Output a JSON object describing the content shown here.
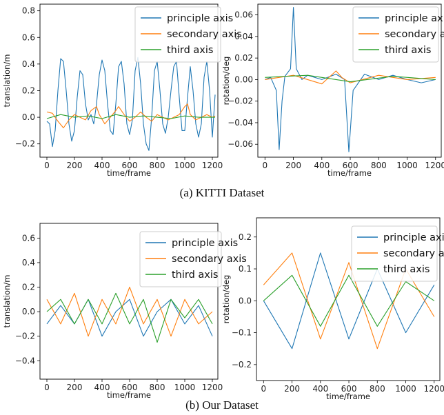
{
  "colors": {
    "principle": "#1f77b4",
    "secondary": "#ff7f0e",
    "third": "#2ca02c"
  },
  "legend_labels": [
    "principle axis",
    "secondary axis",
    "third axis"
  ],
  "captions": {
    "a": "(a)  KITTI Dataset",
    "b": "(b)  Our Dataset"
  },
  "chart_data": [
    {
      "id": "kitti-translation",
      "type": "line",
      "xlabel": "time/frame",
      "ylabel": "translation/m",
      "xlim": [
        -50,
        1240
      ],
      "ylim": [
        -0.3,
        0.85
      ],
      "xticks": [
        0,
        200,
        400,
        600,
        800,
        1000,
        1200
      ],
      "yticks": [
        -0.2,
        0.0,
        0.2,
        0.4,
        0.6,
        0.8
      ],
      "ytick_labels": [
        "−0.2",
        "0.0",
        "0.2",
        "0.4",
        "0.6",
        "0.8"
      ],
      "legend": "top-right",
      "series": [
        {
          "name": "principle axis",
          "color": "#1f77b4",
          "points": [
            [
              0,
              -0.03
            ],
            [
              20,
              -0.05
            ],
            [
              40,
              -0.22
            ],
            [
              60,
              -0.1
            ],
            [
              80,
              0.2
            ],
            [
              100,
              0.44
            ],
            [
              120,
              0.42
            ],
            [
              140,
              0.2
            ],
            [
              160,
              -0.05
            ],
            [
              180,
              -0.18
            ],
            [
              200,
              -0.1
            ],
            [
              220,
              0.15
            ],
            [
              240,
              0.35
            ],
            [
              260,
              0.32
            ],
            [
              280,
              0.1
            ],
            [
              300,
              -0.02
            ],
            [
              320,
              0.02
            ],
            [
              340,
              -0.05
            ],
            [
              360,
              0.1
            ],
            [
              380,
              0.32
            ],
            [
              400,
              0.43
            ],
            [
              420,
              0.35
            ],
            [
              440,
              0.1
            ],
            [
              460,
              -0.1
            ],
            [
              480,
              -0.13
            ],
            [
              500,
              0.1
            ],
            [
              520,
              0.38
            ],
            [
              540,
              0.42
            ],
            [
              560,
              0.25
            ],
            [
              580,
              -0.05
            ],
            [
              600,
              -0.13
            ],
            [
              620,
              -0.02
            ],
            [
              640,
              0.35
            ],
            [
              660,
              0.45
            ],
            [
              680,
              0.25
            ],
            [
              700,
              -0.05
            ],
            [
              720,
              -0.2
            ],
            [
              740,
              -0.25
            ],
            [
              760,
              0.0
            ],
            [
              780,
              0.35
            ],
            [
              800,
              0.42
            ],
            [
              820,
              0.2
            ],
            [
              840,
              -0.05
            ],
            [
              860,
              -0.12
            ],
            [
              880,
              0.0
            ],
            [
              900,
              0.2
            ],
            [
              920,
              0.38
            ],
            [
              940,
              0.42
            ],
            [
              960,
              0.15
            ],
            [
              980,
              -0.1
            ],
            [
              1000,
              -0.1
            ],
            [
              1020,
              0.15
            ],
            [
              1040,
              0.38
            ],
            [
              1060,
              0.2
            ],
            [
              1080,
              -0.05
            ],
            [
              1100,
              -0.15
            ],
            [
              1120,
              -0.05
            ],
            [
              1140,
              0.3
            ],
            [
              1160,
              0.42
            ],
            [
              1180,
              0.2
            ],
            [
              1200,
              -0.15
            ],
            [
              1220,
              0.17
            ]
          ]
        },
        {
          "name": "secondary axis",
          "color": "#ff7f0e",
          "points": [
            [
              0,
              0.04
            ],
            [
              40,
              0.03
            ],
            [
              80,
              -0.03
            ],
            [
              120,
              -0.08
            ],
            [
              160,
              -0.02
            ],
            [
              200,
              0.02
            ],
            [
              240,
              0.0
            ],
            [
              280,
              -0.02
            ],
            [
              320,
              0.05
            ],
            [
              360,
              0.08
            ],
            [
              380,
              0.02
            ],
            [
              420,
              -0.05
            ],
            [
              460,
              0.0
            ],
            [
              500,
              0.05
            ],
            [
              520,
              0.08
            ],
            [
              560,
              0.02
            ],
            [
              600,
              -0.03
            ],
            [
              640,
              0.0
            ],
            [
              680,
              0.04
            ],
            [
              720,
              0.0
            ],
            [
              760,
              -0.03
            ],
            [
              800,
              0.02
            ],
            [
              840,
              0.0
            ],
            [
              880,
              -0.02
            ],
            [
              920,
              0.0
            ],
            [
              960,
              0.02
            ],
            [
              1000,
              0.08
            ],
            [
              1020,
              0.1
            ],
            [
              1040,
              0.02
            ],
            [
              1080,
              -0.02
            ],
            [
              1120,
              0.0
            ],
            [
              1160,
              0.02
            ],
            [
              1200,
              0.0
            ],
            [
              1220,
              0.01
            ]
          ]
        },
        {
          "name": "third axis",
          "color": "#2ca02c",
          "points": [
            [
              0,
              -0.01
            ],
            [
              100,
              0.02
            ],
            [
              200,
              0.0
            ],
            [
              300,
              0.01
            ],
            [
              400,
              -0.01
            ],
            [
              500,
              0.02
            ],
            [
              600,
              0.0
            ],
            [
              700,
              0.01
            ],
            [
              800,
              0.0
            ],
            [
              900,
              -0.01
            ],
            [
              1000,
              0.01
            ],
            [
              1100,
              0.0
            ],
            [
              1220,
              0.0
            ]
          ]
        }
      ]
    },
    {
      "id": "kitti-rotation",
      "type": "line",
      "xlabel": "time/frame",
      "ylabel": "rotation/deg",
      "xlim": [
        -50,
        1240
      ],
      "ylim": [
        -0.072,
        0.07
      ],
      "xticks": [
        0,
        200,
        400,
        600,
        800,
        1000,
        1200
      ],
      "yticks": [
        -0.06,
        -0.04,
        -0.02,
        0.0,
        0.02,
        0.04,
        0.06
      ],
      "ytick_labels": [
        "−0.06",
        "−0.04",
        "−0.02",
        "0.00",
        "0.02",
        "0.04",
        "0.06"
      ],
      "legend": "top-right",
      "series": [
        {
          "name": "principle axis",
          "color": "#1f77b4",
          "points": [
            [
              0,
              0.0
            ],
            [
              40,
              0.002
            ],
            [
              80,
              -0.01
            ],
            [
              100,
              -0.065
            ],
            [
              120,
              -0.02
            ],
            [
              140,
              0.003
            ],
            [
              180,
              0.01
            ],
            [
              200,
              0.067
            ],
            [
              220,
              0.01
            ],
            [
              260,
              0.0
            ],
            [
              300,
              0.004
            ],
            [
              400,
              0.0
            ],
            [
              500,
              0.005
            ],
            [
              560,
              0.0
            ],
            [
              590,
              -0.067
            ],
            [
              620,
              -0.01
            ],
            [
              700,
              0.005
            ],
            [
              800,
              0.0
            ],
            [
              900,
              0.004
            ],
            [
              1000,
              0.0
            ],
            [
              1100,
              -0.003
            ],
            [
              1200,
              0.0
            ]
          ]
        },
        {
          "name": "secondary axis",
          "color": "#ff7f0e",
          "points": [
            [
              0,
              0.0
            ],
            [
              200,
              0.004
            ],
            [
              400,
              -0.004
            ],
            [
              500,
              0.008
            ],
            [
              540,
              0.002
            ],
            [
              600,
              -0.003
            ],
            [
              800,
              0.004
            ],
            [
              1000,
              0.0
            ],
            [
              1200,
              0.002
            ]
          ]
        },
        {
          "name": "third axis",
          "color": "#2ca02c",
          "points": [
            [
              0,
              0.002
            ],
            [
              300,
              0.004
            ],
            [
              600,
              -0.002
            ],
            [
              900,
              0.003
            ],
            [
              1200,
              0.0
            ]
          ]
        }
      ]
    },
    {
      "id": "ours-translation",
      "type": "line",
      "xlabel": "time/frame",
      "ylabel": "translation/m",
      "xlim": [
        -50,
        1240
      ],
      "ylim": [
        -0.55,
        0.72
      ],
      "xticks": [
        0,
        200,
        400,
        600,
        800,
        1000,
        1200
      ],
      "yticks": [
        -0.4,
        -0.2,
        0.0,
        0.2,
        0.4,
        0.6
      ],
      "ytick_labels": [
        "−0.4",
        "−0.2",
        "0.0",
        "0.2",
        "0.4",
        "0.6"
      ],
      "legend": "top-right",
      "series": [
        {
          "name": "principle axis",
          "color": "#1f77b4",
          "points": [
            [
              0,
              -0.1
            ],
            [
              100,
              0.05
            ],
            [
              200,
              -0.1
            ],
            [
              300,
              0.1
            ],
            [
              400,
              -0.2
            ],
            [
              500,
              0.0
            ],
            [
              600,
              0.1
            ],
            [
              700,
              -0.2
            ],
            [
              800,
              0.0
            ],
            [
              900,
              0.1
            ],
            [
              1000,
              -0.1
            ],
            [
              1100,
              0.05
            ],
            [
              1200,
              -0.2
            ]
          ]
        },
        {
          "name": "secondary axis",
          "color": "#ff7f0e",
          "points": [
            [
              0,
              0.1
            ],
            [
              100,
              -0.1
            ],
            [
              200,
              0.15
            ],
            [
              300,
              -0.2
            ],
            [
              400,
              0.1
            ],
            [
              500,
              -0.1
            ],
            [
              600,
              0.2
            ],
            [
              700,
              -0.1
            ],
            [
              800,
              0.1
            ],
            [
              900,
              -0.2
            ],
            [
              1000,
              0.1
            ],
            [
              1100,
              -0.1
            ],
            [
              1200,
              0.0
            ]
          ]
        },
        {
          "name": "third axis",
          "color": "#2ca02c",
          "points": [
            [
              0,
              0.0
            ],
            [
              100,
              0.1
            ],
            [
              200,
              -0.1
            ],
            [
              300,
              0.1
            ],
            [
              400,
              -0.1
            ],
            [
              500,
              0.15
            ],
            [
              600,
              -0.1
            ],
            [
              700,
              0.1
            ],
            [
              800,
              -0.25
            ],
            [
              900,
              0.1
            ],
            [
              1000,
              -0.05
            ],
            [
              1100,
              0.1
            ],
            [
              1200,
              -0.1
            ]
          ]
        }
      ]
    },
    {
      "id": "ours-rotation",
      "type": "line",
      "xlabel": "time/frame",
      "ylabel": "rotation/deg",
      "xlim": [
        -50,
        1240
      ],
      "ylim": [
        -0.25,
        0.26
      ],
      "xticks": [
        0,
        200,
        400,
        600,
        800,
        1000,
        1200
      ],
      "yticks": [
        -0.2,
        -0.1,
        0.0,
        0.1,
        0.2
      ],
      "ytick_labels": [
        "−0.2",
        "−0.1",
        "0.0",
        "0.1",
        "0.2"
      ],
      "legend": "top-right",
      "series": [
        {
          "name": "principle axis",
          "color": "#1f77b4",
          "points": [
            [
              0,
              0.0
            ],
            [
              200,
              -0.15
            ],
            [
              400,
              0.15
            ],
            [
              600,
              -0.12
            ],
            [
              800,
              0.1
            ],
            [
              1000,
              -0.1
            ],
            [
              1200,
              0.05
            ]
          ]
        },
        {
          "name": "secondary axis",
          "color": "#ff7f0e",
          "points": [
            [
              0,
              0.05
            ],
            [
              200,
              0.15
            ],
            [
              400,
              -0.12
            ],
            [
              600,
              0.12
            ],
            [
              800,
              -0.15
            ],
            [
              1000,
              0.1
            ],
            [
              1200,
              -0.05
            ]
          ]
        },
        {
          "name": "third axis",
          "color": "#2ca02c",
          "points": [
            [
              0,
              0.0
            ],
            [
              200,
              0.08
            ],
            [
              400,
              -0.08
            ],
            [
              600,
              0.08
            ],
            [
              800,
              -0.08
            ],
            [
              1000,
              0.06
            ],
            [
              1200,
              0.0
            ]
          ]
        }
      ]
    }
  ]
}
